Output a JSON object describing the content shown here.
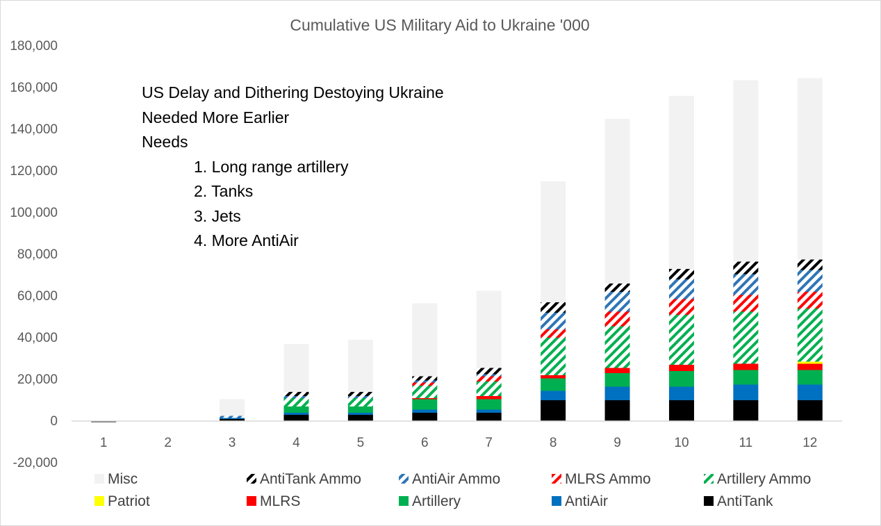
{
  "chart_data": {
    "type": "bar",
    "stacked": true,
    "title": "Cumulative US Military Aid to Ukraine '000",
    "xlabel": "",
    "ylabel": "",
    "ylim": [
      -20000,
      180000
    ],
    "yticks": [
      -20000,
      0,
      20000,
      40000,
      60000,
      80000,
      100000,
      120000,
      140000,
      160000,
      180000
    ],
    "ytick_labels": [
      "-20,000",
      "0",
      "20,000",
      "40,000",
      "60,000",
      "80,000",
      "100,000",
      "120,000",
      "140,000",
      "160,000",
      "180,000"
    ],
    "categories": [
      "1",
      "2",
      "3",
      "4",
      "5",
      "6",
      "7",
      "8",
      "9",
      "10",
      "11",
      "12"
    ],
    "grid": false,
    "legend_position": "bottom",
    "series": [
      {
        "name": "AntiTank",
        "color": "#000000",
        "pattern": "solid",
        "values": [
          -500,
          0,
          1000,
          3000,
          3000,
          4000,
          4000,
          10000,
          10000,
          10000,
          10000,
          10000
        ]
      },
      {
        "name": "AntiAir",
        "color": "#0070C0",
        "pattern": "solid",
        "values": [
          0,
          0,
          500,
          1000,
          1000,
          1500,
          1500,
          4500,
          6500,
          6500,
          7500,
          7500
        ]
      },
      {
        "name": "Artillery",
        "color": "#00B050",
        "pattern": "solid",
        "values": [
          0,
          0,
          0,
          3000,
          3000,
          5000,
          5000,
          6000,
          6500,
          7500,
          7000,
          7000
        ]
      },
      {
        "name": "MLRS",
        "color": "#FF0000",
        "pattern": "solid",
        "values": [
          0,
          0,
          0,
          0,
          0,
          500,
          1500,
          1500,
          2500,
          3000,
          3000,
          3000
        ]
      },
      {
        "name": "Patriot",
        "color": "#FFFF00",
        "pattern": "solid",
        "values": [
          0,
          0,
          0,
          0,
          0,
          0,
          0,
          0,
          0,
          0,
          0,
          1000
        ]
      },
      {
        "name": "Artillery Ammo",
        "color": "#00B050",
        "pattern": "hatch",
        "values": [
          0,
          0,
          0,
          4000,
          4000,
          6000,
          7000,
          18000,
          20000,
          24000,
          25000,
          25500
        ]
      },
      {
        "name": "MLRS Ammo",
        "color": "#FF0000",
        "pattern": "hatch",
        "values": [
          0,
          0,
          0,
          0,
          0,
          1500,
          2500,
          4000,
          7000,
          7500,
          8000,
          8000
        ]
      },
      {
        "name": "AntiAir Ammo",
        "color": "#2E75B6",
        "pattern": "hatch",
        "values": [
          0,
          0,
          1000,
          1000,
          1000,
          1000,
          1000,
          8000,
          9500,
          9500,
          10000,
          10500
        ]
      },
      {
        "name": "AntiTank Ammo",
        "color": "#000000",
        "pattern": "hatch",
        "values": [
          0,
          0,
          0,
          2000,
          2000,
          2000,
          3000,
          5000,
          4000,
          5000,
          6000,
          5000
        ]
      },
      {
        "name": "Misc",
        "color": "#F2F2F2",
        "pattern": "solid",
        "values": [
          0,
          0,
          8000,
          23000,
          25000,
          35000,
          37000,
          58000,
          79000,
          83000,
          87000,
          87000
        ]
      }
    ],
    "legend_order": [
      "Misc",
      "AntiTank Ammo",
      "AntiAir Ammo",
      "MLRS Ammo",
      "Artillery Ammo",
      "Patriot",
      "MLRS",
      "Artillery",
      "AntiAir",
      "AntiTank"
    ],
    "annotation": {
      "lines": [
        "US Delay and Dithering Destoying Ukraine",
        "Needed More Earlier",
        "Needs"
      ],
      "items": [
        "1. Long range artillery",
        "2. Tanks",
        "3. Jets",
        "4. More AntiAir"
      ]
    }
  }
}
